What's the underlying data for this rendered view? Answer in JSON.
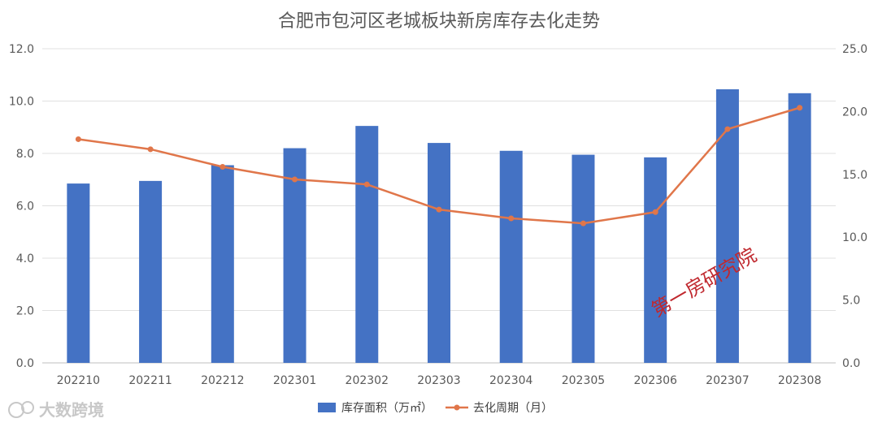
{
  "chart_data": {
    "type": "bar+line",
    "title": "合肥市包河区老城板块新房库存去化走势",
    "categories": [
      "202210",
      "202211",
      "202212",
      "202301",
      "202302",
      "202303",
      "202304",
      "202305",
      "202306",
      "202307",
      "202308"
    ],
    "series": [
      {
        "name": "库存面积（万㎡）",
        "type": "bar",
        "axis": "left",
        "color": "#4472C4",
        "values": [
          6.85,
          6.95,
          7.55,
          8.2,
          9.05,
          8.4,
          8.1,
          7.95,
          7.85,
          10.45,
          10.3
        ]
      },
      {
        "name": "去化周期（月）",
        "type": "line",
        "axis": "right",
        "color": "#E0764A",
        "values": [
          17.8,
          17.0,
          15.6,
          14.6,
          14.2,
          12.2,
          11.5,
          11.1,
          12.0,
          18.6,
          20.3
        ]
      }
    ],
    "y_left": {
      "min": 0,
      "max": 12,
      "ticks": [
        "0.0",
        "2.0",
        "4.0",
        "6.0",
        "8.0",
        "10.0",
        "12.0"
      ]
    },
    "y_right": {
      "min": 0,
      "max": 25,
      "ticks": [
        "0.0",
        "5.0",
        "10.0",
        "15.0",
        "20.0",
        "25.0"
      ]
    },
    "grid": true,
    "legend_position": "bottom"
  },
  "watermarks": {
    "red": "第一房研究院",
    "gray": "大数跨境"
  }
}
